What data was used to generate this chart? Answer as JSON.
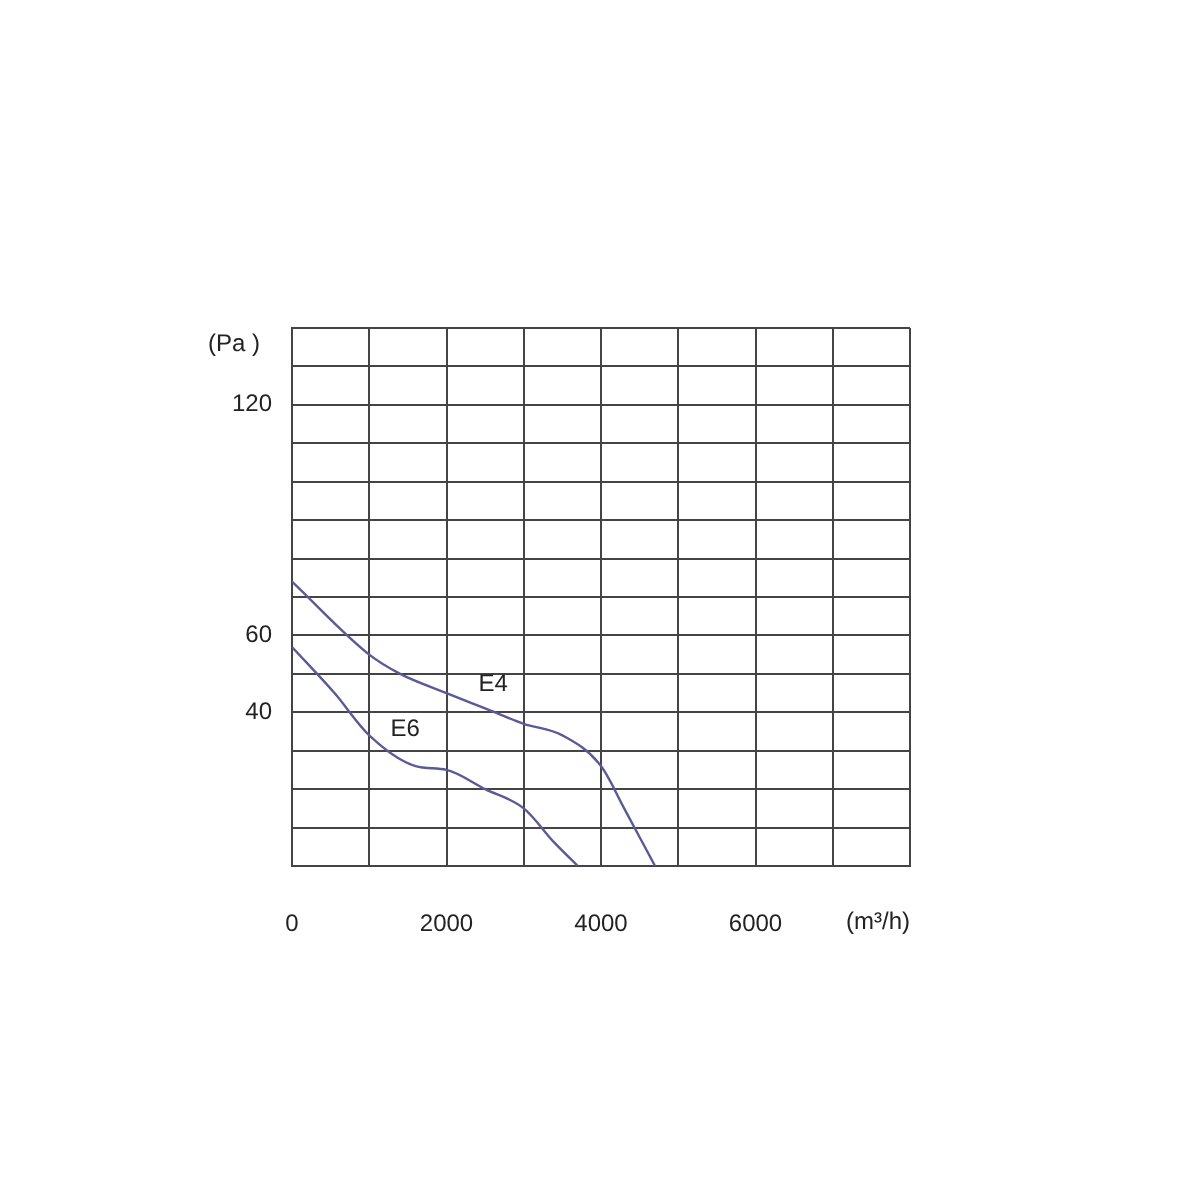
{
  "chart_data": {
    "type": "line",
    "xlabel": "(m³/h)",
    "ylabel": "(Pa )",
    "xlim": [
      0,
      8000
    ],
    "ylim": [
      0,
      140
    ],
    "xticks": [
      0,
      {
        "value": 1000,
        "label": null
      },
      2000,
      {
        "value": 3000,
        "label": null
      },
      4000,
      {
        "value": 5000,
        "label": null
      },
      6000,
      {
        "value": 7000,
        "label": null
      },
      {
        "value": 8000,
        "label": null
      }
    ],
    "yticks": [
      {
        "value": 0,
        "label": null
      },
      {
        "value": 10,
        "label": null
      },
      {
        "value": 20,
        "label": null
      },
      {
        "value": 30,
        "label": null
      },
      40,
      {
        "value": 50,
        "label": null
      },
      60,
      {
        "value": 70,
        "label": null
      },
      {
        "value": 80,
        "label": null
      },
      {
        "value": 90,
        "label": null
      },
      {
        "value": 100,
        "label": null
      },
      {
        "value": 110,
        "label": null
      },
      120,
      {
        "value": 130,
        "label": null
      },
      {
        "value": 140,
        "label": null
      }
    ],
    "grid": true,
    "legend": false,
    "marker": "none",
    "line_style": "solid",
    "series": [
      {
        "name": "E4",
        "color": "#5a5a96",
        "x": [
          0,
          1000,
          1400,
          2000,
          2500,
          3000,
          3500,
          4000,
          4300,
          4700
        ],
        "values": [
          74,
          55,
          50,
          45,
          41,
          37,
          34,
          26,
          15,
          0
        ]
      },
      {
        "name": "E6",
        "color": "#5a5a96",
        "x": [
          0,
          550,
          1000,
          1600,
          2000,
          2500,
          3000,
          3400,
          3700
        ],
        "values": [
          57,
          45,
          34,
          26,
          25,
          20,
          15,
          6,
          0
        ]
      }
    ]
  }
}
